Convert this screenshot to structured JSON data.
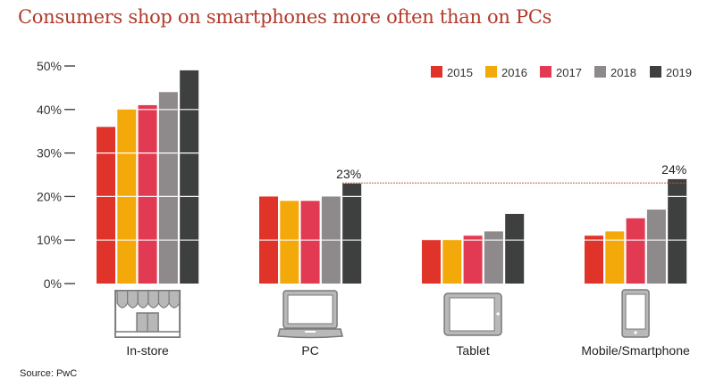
{
  "chart_data": {
    "type": "bar",
    "title": "Consumers shop on smartphones more often than on PCs",
    "xlabel": "",
    "ylabel": "",
    "ylim": [
      0,
      50
    ],
    "yticks": [
      0,
      10,
      20,
      30,
      40,
      50
    ],
    "ytick_labels": [
      "0%",
      "10%",
      "20%",
      "30%",
      "40%",
      "50%"
    ],
    "grid": true,
    "legend_position": "top-right",
    "categories": [
      "In-store",
      "PC",
      "Tablet",
      "Mobile/Smartphone"
    ],
    "category_icons": [
      "storefront-icon",
      "laptop-icon",
      "tablet-icon",
      "smartphone-icon"
    ],
    "series": [
      {
        "name": "2015",
        "color": "#e0342a",
        "values": [
          36,
          20,
          10,
          11
        ]
      },
      {
        "name": "2016",
        "color": "#f4a90a",
        "values": [
          40,
          19,
          10,
          12
        ]
      },
      {
        "name": "2017",
        "color": "#e23a52",
        "values": [
          41,
          19,
          11,
          15
        ]
      },
      {
        "name": "2018",
        "color": "#8e8a8b",
        "values": [
          44,
          20,
          12,
          17
        ]
      },
      {
        "name": "2019",
        "color": "#3e3f3f",
        "values": [
          49,
          23,
          16,
          24
        ]
      }
    ],
    "annotations": [
      {
        "text": "23%",
        "category": "PC",
        "series": "2019",
        "value": 23
      },
      {
        "text": "24%",
        "category": "Mobile/Smartphone",
        "series": "2019",
        "value": 24
      }
    ],
    "reference_line": {
      "style": "dotted",
      "color": "#c0593e",
      "value": 23,
      "from_category": "PC",
      "to_category": "Mobile/Smartphone"
    }
  },
  "source": "Source: PwC"
}
